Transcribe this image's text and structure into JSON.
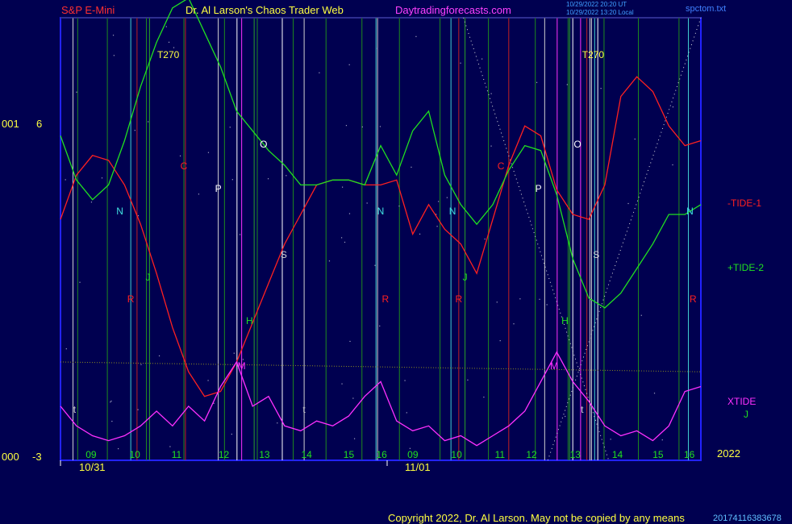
{
  "header": {
    "symbol": "S&P E-Mini",
    "title": "Dr. Al Larson's Chaos Trader Web",
    "site": "Daytradingforecasts.com",
    "stamp_line1": "10/29/2022 20:20 UT",
    "stamp_line2": "10/29/2022 13:20 Local",
    "file": "spctom.txt"
  },
  "axis": {
    "y_top_left": "001",
    "y_top_value": "6",
    "y_bottom_left": "000",
    "y_bottom_value": "-3",
    "year": "2022",
    "date_1": "10/31",
    "date_2": "11/01"
  },
  "footer": {
    "copyright": "Copyright 2022, Dr. Al Larson. May not be copied by any means",
    "code": "20174116383678"
  },
  "colors": {
    "background": "#000050",
    "plot_border": "#2222ff",
    "tide1": "#ff2020",
    "tide2": "#20e020",
    "xtide": "#ff30ff",
    "title": "#ffff40",
    "site": "#ff40ff",
    "symbol": "#ff3030"
  },
  "chart_data": {
    "type": "line",
    "x_unit": "hour",
    "x_ticks": [
      "09",
      "10",
      "11",
      "12",
      "13",
      "14",
      "15",
      "16",
      "09",
      "10",
      "11",
      "12",
      "13",
      "14",
      "15",
      "16"
    ],
    "x_tick_sessions": [
      "10/31",
      "10/31",
      "10/31",
      "10/31",
      "10/31",
      "10/31",
      "10/31",
      "10/31",
      "11/01",
      "11/01",
      "11/01",
      "11/01",
      "11/01",
      "11/01",
      "11/01",
      "11/01"
    ],
    "ylim": [
      -3,
      6
    ],
    "series": [
      {
        "name": "-TIDE-1",
        "color": "#ff2020",
        "values": [
          1.9,
          2.8,
          3.2,
          3.1,
          2.6,
          1.8,
          0.8,
          -0.3,
          -1.2,
          -1.7,
          -1.6,
          -1.0,
          -0.2,
          0.6,
          1.4,
          2.0,
          2.6,
          2.7,
          2.7,
          2.6,
          2.6,
          2.7,
          1.6,
          2.2,
          1.7,
          1.4,
          0.8,
          1.9,
          3.0,
          3.8,
          3.6,
          2.5,
          2.0,
          1.9,
          2.6,
          4.4,
          4.8,
          4.5,
          3.8,
          3.4,
          3.5
        ]
      },
      {
        "name": "+TIDE-2",
        "color": "#20e020",
        "values": [
          3.6,
          2.7,
          2.3,
          2.6,
          3.5,
          4.6,
          5.5,
          6.2,
          6.4,
          5.7,
          5.0,
          4.1,
          3.7,
          3.3,
          3.0,
          2.6,
          2.6,
          2.7,
          2.7,
          2.6,
          3.4,
          2.8,
          3.7,
          4.1,
          2.8,
          2.2,
          1.8,
          2.2,
          2.9,
          3.4,
          3.3,
          2.4,
          1.1,
          0.3,
          0.1,
          0.4,
          0.9,
          1.4,
          2.0,
          2.0,
          2.2
        ]
      },
      {
        "name": "XTIDE",
        "color": "#ff30ff",
        "values": [
          -1.9,
          -2.3,
          -2.5,
          -2.6,
          -2.5,
          -2.3,
          -2.0,
          -2.3,
          -1.9,
          -2.2,
          -1.5,
          -1.0,
          -1.9,
          -1.7,
          -2.3,
          -2.4,
          -2.2,
          -2.3,
          -2.1,
          -1.7,
          -1.4,
          -2.2,
          -2.4,
          -2.3,
          -2.6,
          -2.5,
          -2.7,
          -2.5,
          -2.3,
          -2.0,
          -1.4,
          -0.8,
          -1.4,
          -1.8,
          -2.3,
          -2.5,
          -2.4,
          -2.6,
          -2.3,
          -1.6,
          -1.5
        ]
      }
    ],
    "series_labels": [
      "-TIDE-1",
      "+TIDE-2",
      "XTIDE",
      "J"
    ],
    "event_labels": [
      {
        "text": "T270",
        "color": "#ffff40",
        "x": 6.9
      },
      {
        "text": "T270",
        "color": "#ffff40",
        "x": 34.1
      },
      {
        "text": "N",
        "color": "#40e0e0",
        "x": 3.8
      },
      {
        "text": "N",
        "color": "#40e0e0",
        "x": 20.5
      },
      {
        "text": "N",
        "color": "#40e0e0",
        "x": 25.1
      },
      {
        "text": "N",
        "color": "#40e0e0",
        "x": 40.3
      },
      {
        "text": "C",
        "color": "#ff2020",
        "x": 7.9
      },
      {
        "text": "C",
        "color": "#ff2020",
        "x": 28.2
      },
      {
        "text": "P",
        "color": "#ffffff",
        "x": 10.1
      },
      {
        "text": "P",
        "color": "#ffffff",
        "x": 30.6
      },
      {
        "text": "O",
        "color": "#ffffff",
        "x": 13.0
      },
      {
        "text": "O",
        "color": "#ffffff",
        "x": 33.1
      },
      {
        "text": "S",
        "color": "#d0d0d0",
        "x": 14.3
      },
      {
        "text": "S",
        "color": "#d0d0d0",
        "x": 34.3
      },
      {
        "text": "H",
        "color": "#20e020",
        "x": 12.1
      },
      {
        "text": "H",
        "color": "#20e020",
        "x": 32.3
      },
      {
        "text": "M",
        "color": "#ff30ff",
        "x": 11.6
      },
      {
        "text": "M",
        "color": "#ff30ff",
        "x": 31.6
      },
      {
        "text": "J",
        "color": "#20e020",
        "x": 5.6
      },
      {
        "text": "J",
        "color": "#20e020",
        "x": 25.9
      },
      {
        "text": "R",
        "color": "#ff2020",
        "x": 4.5
      },
      {
        "text": "R",
        "color": "#ff2020",
        "x": 20.8
      },
      {
        "text": "R",
        "color": "#ff2020",
        "x": 25.5
      },
      {
        "text": "R",
        "color": "#ff2020",
        "x": 40.5
      },
      {
        "text": "t",
        "color": "#d0d0d0",
        "x": 0.9
      },
      {
        "text": "t",
        "color": "#d0d0d0",
        "x": 15.6
      },
      {
        "text": "t",
        "color": "#d0d0d0",
        "x": 33.4
      }
    ],
    "grid": true
  }
}
